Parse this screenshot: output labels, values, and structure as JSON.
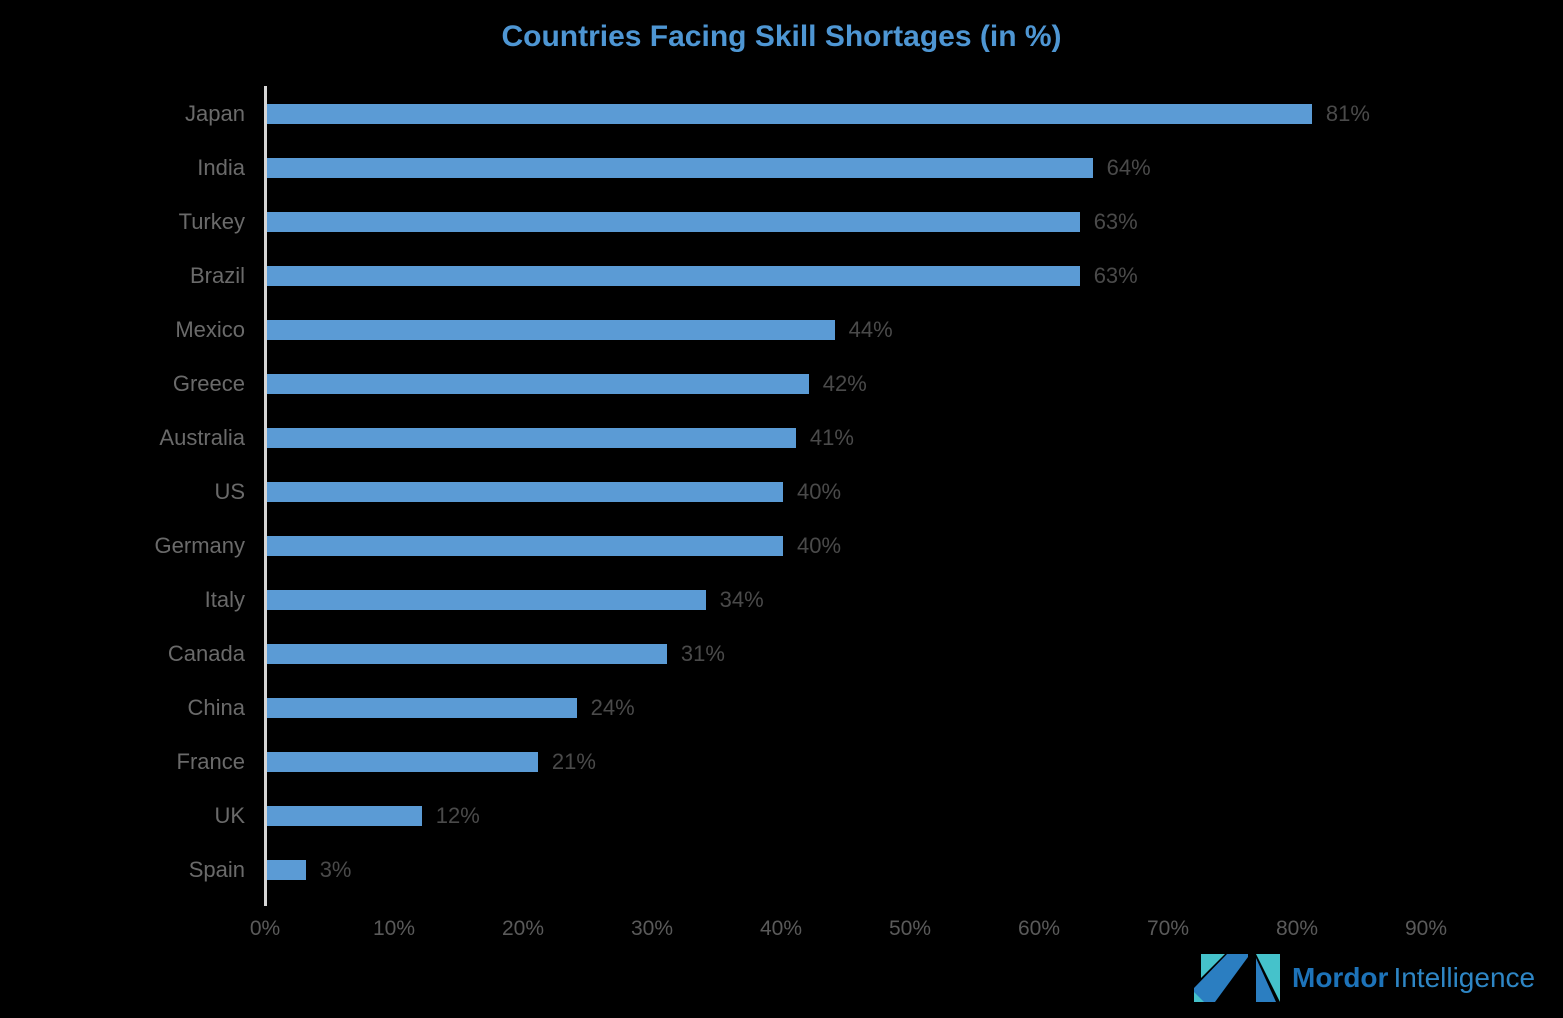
{
  "title": "Countries Facing Skill Shortages (in %)",
  "chart_data": {
    "type": "bar",
    "orientation": "horizontal",
    "title": "Countries Facing Skill Shortages (in %)",
    "categories": [
      "Japan",
      "India",
      "Turkey",
      "Brazil",
      "Mexico",
      "Greece",
      "Australia",
      "US",
      "Germany",
      "Italy",
      "Canada",
      "China",
      "France",
      "UK",
      "Spain"
    ],
    "values": [
      81,
      64,
      63,
      63,
      44,
      42,
      41,
      40,
      40,
      34,
      31,
      24,
      21,
      12,
      3
    ],
    "value_labels": [
      "81%",
      "64%",
      "63%",
      "63%",
      "44%",
      "42%",
      "41%",
      "40%",
      "40%",
      "34%",
      "31%",
      "24%",
      "21%",
      "12%",
      "3%"
    ],
    "x_ticks": [
      "0%",
      "10%",
      "20%",
      "30%",
      "40%",
      "50%",
      "60%",
      "70%",
      "80%",
      "90%"
    ],
    "xlim": [
      0,
      90
    ],
    "xlabel": "",
    "ylabel": "",
    "grid": false,
    "legend": "none",
    "colors": {
      "bar": "#5b9bd5",
      "title": "#4e96d3",
      "category_label": "#6a6a6a",
      "value_label": "#4a4a4a",
      "tick_label": "#5a5a5a",
      "axis_line": "#d6d6d6",
      "background": "#000000"
    }
  },
  "branding": {
    "logo_mark": "mordor-intelligence-m-icon",
    "name_bold": "Mordor",
    "name_light": "Intelligence",
    "brand_blue": "#2b7ec1",
    "brand_teal": "#45c2cb"
  }
}
